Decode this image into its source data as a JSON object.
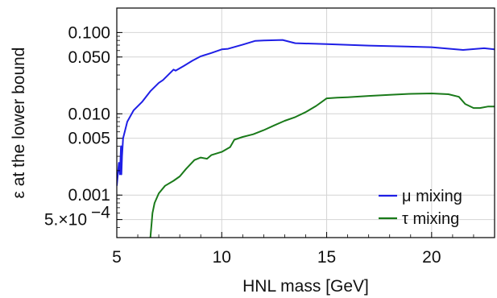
{
  "chart_data": {
    "type": "line",
    "xlabel": "HNL mass [GeV]",
    "ylabel": "ε at the lower bound",
    "xlim": [
      5,
      23
    ],
    "ylim": [
      0.0003,
      0.2
    ],
    "yscale": "log",
    "grid": true,
    "legend_position": "bottom-right",
    "x_ticks": [
      {
        "value": 5,
        "label": "5"
      },
      {
        "value": 10,
        "label": "10"
      },
      {
        "value": 15,
        "label": "15"
      },
      {
        "value": 20,
        "label": "20"
      }
    ],
    "y_ticks": [
      {
        "value": 0.0005,
        "label": "5.×10",
        "exp": "−4"
      },
      {
        "value": 0.001,
        "label": "0.001"
      },
      {
        "value": 0.005,
        "label": "0.005"
      },
      {
        "value": 0.01,
        "label": "0.010"
      },
      {
        "value": 0.05,
        "label": "0.050"
      },
      {
        "value": 0.1,
        "label": "0.100"
      }
    ],
    "series": [
      {
        "name": "μ mixing",
        "color": "#1f1fe6",
        "x": [
          5.0,
          5.1,
          5.15,
          5.2,
          5.22,
          5.25,
          5.3,
          5.5,
          5.8,
          6.2,
          6.6,
          7.0,
          7.2,
          7.5,
          7.7,
          7.8,
          8.2,
          8.6,
          9.0,
          9.5,
          10.0,
          10.3,
          11.0,
          11.6,
          12.0,
          12.9,
          13.5,
          15.0,
          17.0,
          20.0,
          21.5,
          22.5,
          23.0
        ],
        "y": [
          0.0013,
          0.0025,
          0.0018,
          0.004,
          0.0018,
          0.003,
          0.005,
          0.008,
          0.011,
          0.014,
          0.019,
          0.024,
          0.026,
          0.031,
          0.035,
          0.034,
          0.039,
          0.045,
          0.051,
          0.056,
          0.062,
          0.063,
          0.071,
          0.079,
          0.08,
          0.081,
          0.074,
          0.072,
          0.069,
          0.066,
          0.061,
          0.064,
          0.062
        ]
      },
      {
        "name": "τ mixing",
        "color": "#1a7a1a",
        "x": [
          6.6,
          6.7,
          6.8,
          7.0,
          7.3,
          7.7,
          8.0,
          8.3,
          8.7,
          9.0,
          9.3,
          9.5,
          10.0,
          10.4,
          10.6,
          11.0,
          11.5,
          12.0,
          12.5,
          13.0,
          13.5,
          14.0,
          14.5,
          15.0,
          15.5,
          16.0,
          17.0,
          18.0,
          19.0,
          20.0,
          20.8,
          21.3,
          21.6,
          22.0,
          22.3,
          22.7,
          23.0
        ],
        "y": [
          0.0003,
          0.0006,
          0.0008,
          0.00105,
          0.0013,
          0.0015,
          0.0017,
          0.0021,
          0.0027,
          0.0029,
          0.0028,
          0.0031,
          0.0034,
          0.0039,
          0.0048,
          0.0052,
          0.0056,
          0.0063,
          0.0072,
          0.0082,
          0.0091,
          0.0105,
          0.0125,
          0.0155,
          0.0158,
          0.016,
          0.0166,
          0.0171,
          0.0176,
          0.0178,
          0.0174,
          0.0162,
          0.0132,
          0.0118,
          0.0118,
          0.0123,
          0.0123
        ]
      }
    ]
  }
}
